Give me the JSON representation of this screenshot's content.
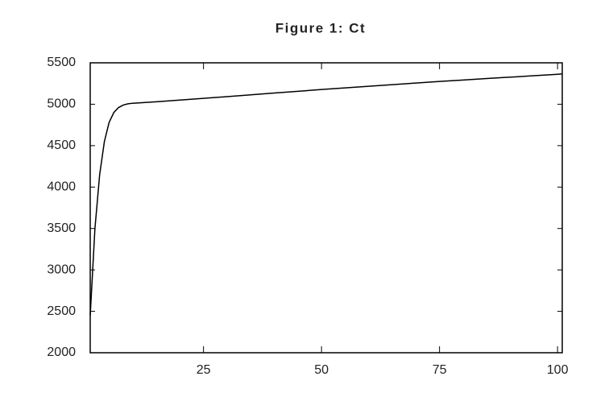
{
  "chart_data": {
    "type": "line",
    "title": "Figure 1: Ct",
    "x": [
      1,
      2,
      3,
      4,
      5,
      6,
      7,
      8,
      9,
      10,
      15,
      20,
      25,
      30,
      35,
      40,
      45,
      50,
      55,
      60,
      65,
      70,
      75,
      80,
      85,
      90,
      95,
      100,
      101
    ],
    "series": [
      {
        "name": "Ct",
        "color": "#000000",
        "values": [
          2450,
          3500,
          4150,
          4550,
          4780,
          4900,
          4960,
          4990,
          5005,
          5012,
          5030,
          5050,
          5071,
          5092,
          5113,
          5135,
          5156,
          5178,
          5197,
          5217,
          5236,
          5256,
          5275,
          5292,
          5310,
          5327,
          5345,
          5362,
          5366
        ]
      }
    ],
    "xlim": [
      1,
      101
    ],
    "xticks": [
      25,
      50,
      75,
      100
    ],
    "ylim": [
      2000,
      5500
    ],
    "yticks": [
      2000,
      2500,
      3000,
      3500,
      4000,
      4500,
      5000,
      5500
    ]
  }
}
